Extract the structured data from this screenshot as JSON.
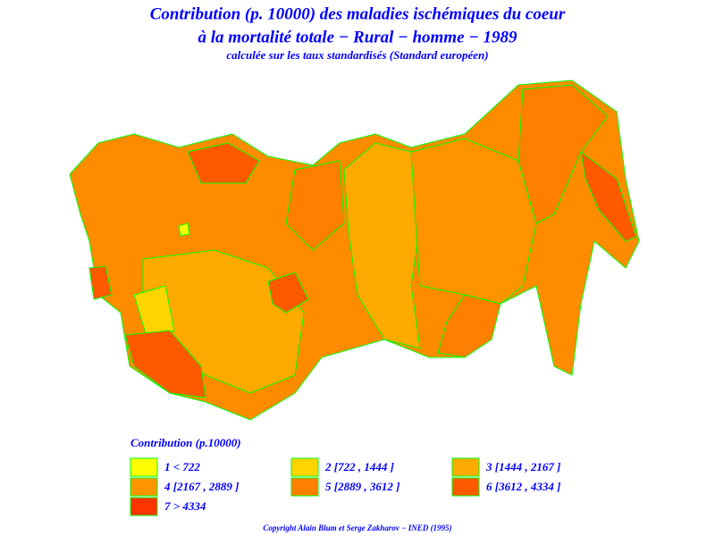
{
  "header": {
    "title_line1": "Contribution (p. 10000) des maladies ischémiques du coeur",
    "title_line2": "à la mortalité totale  −  Rural  −  homme  −  1989",
    "subtitle": "calculée sur les taux standardisés (Standard européen)"
  },
  "legend": {
    "title": "Contribution  (p.10000)",
    "items": [
      {
        "label": "1  <  722",
        "color": "#ffff00"
      },
      {
        "label": "2  [722 , 1444 ]",
        "color": "#ffd400"
      },
      {
        "label": "3  [1444 , 2167 ]",
        "color": "#ffaa00"
      },
      {
        "label": "4  [2167 , 2889 ]",
        "color": "#ff9400"
      },
      {
        "label": "5  [2889 , 3612 ]",
        "color": "#ff7f00"
      },
      {
        "label": "6  [3612 , 4334 ]",
        "color": "#ff5a00"
      },
      {
        "label": "7  >  4334",
        "color": "#ff3300"
      }
    ]
  },
  "footer": {
    "copyright": "Copyright  Alain  Blum  et  Serge  Zakharov  −  INED  (1995)"
  }
}
